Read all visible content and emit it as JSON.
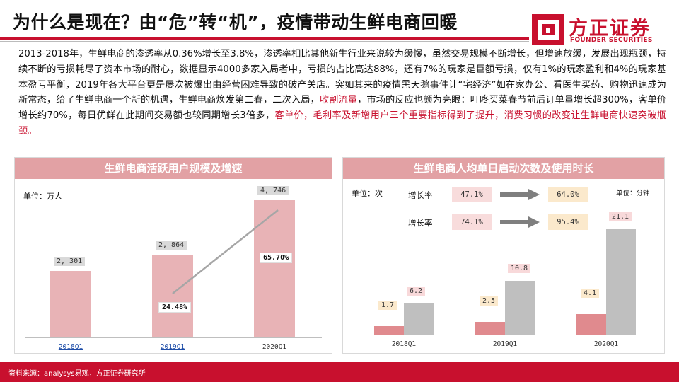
{
  "header": {
    "title": "为什么是现在？由“危”转“机”，疫情带动生鲜电商回暖",
    "logo_cn": "方正证券",
    "logo_en": "FOUNDER SECURITIES",
    "brand_color": "#c8102e"
  },
  "body": {
    "p1": "2013-2018年，生鲜电商的渗透率从0.36%增长至3.8%，渗透率相比其他新生行业来说较为缓慢，虽然交易规模不断增长，但增速放缓，发展出现瓶颈，持续不断的亏损耗尽了资本市场的耐心，数据显示4000多家入局者中，亏损的占比高达88%，还有7%的玩家是巨额亏损，仅有1%的玩家盈利和4%的玩家基本盈亏平衡，2019年各大平台更是屡次被爆出由经营困难导致的破产关店。突如其来的疫情黑天鹅事件让“宅经济”如在家办公、看医生买药、购物迅速成为新常态，给了生鲜电商一个新的机遇，生鲜电商焕发第二春，二次入局，",
    "hl1": "收割流量",
    "p2": "，市场的反应也颇为亮眼：叮咚买菜春节前后订单量增长超300%，客单价增长约70%，每日优鲜在此期间交易额也较同期增长3倍多，",
    "hl2": "客单价，毛利率及新增用户三个重要指标得到了提升，消费习惯的改变让生鲜电商快速突破瓶颈。"
  },
  "left_panel": {
    "title": "生鲜电商活跃用户规模及增速",
    "unit": "单位：万人"
  },
  "right_panel": {
    "title": "生鲜电商人均单日启动次数及使用时长",
    "unit_left": "单位：次",
    "unit_right": "单位：分钟",
    "growth_rows": [
      {
        "label": "增长率",
        "from": "47.1%",
        "to": "64.0%"
      },
      {
        "label": "增长率",
        "from": "74.1%",
        "to": "95.4%"
      }
    ]
  },
  "chart_data": [
    {
      "type": "bar",
      "title": "生鲜电商活跃用户规模及增速",
      "unit": "万人",
      "categories": [
        "2018Q1",
        "2019Q1",
        "2020Q1"
      ],
      "values": [
        2301,
        2864,
        4746
      ],
      "value_labels": [
        "2, 301",
        "2, 864",
        "4, 746"
      ],
      "growth_labels": [
        "24.48%",
        "65.70%"
      ],
      "ylim": [
        0,
        5000
      ],
      "colors": {
        "bar": "#e8b3b6",
        "line": "#a6a6a6"
      }
    },
    {
      "type": "bar",
      "title": "生鲜电商人均单日启动次数及使用时长",
      "categories": [
        "2018Q1",
        "2019Q1",
        "2020Q1"
      ],
      "series": [
        {
          "name": "单位：次",
          "values": [
            1.7,
            2.5,
            4.1
          ],
          "labels": [
            "1.7",
            "2.5",
            "4.1"
          ]
        },
        {
          "name": "单位：分钟",
          "values": [
            6.2,
            10.8,
            21.1
          ],
          "labels": [
            "6.2",
            "10.8",
            "21.1"
          ]
        }
      ],
      "ylim": [
        0,
        24
      ],
      "colors": {
        "s1": "#e08a8e",
        "s2": "#bfbfbf"
      }
    }
  ],
  "footer": {
    "source": "资料来源：analysys易观，方正证券研究所"
  }
}
